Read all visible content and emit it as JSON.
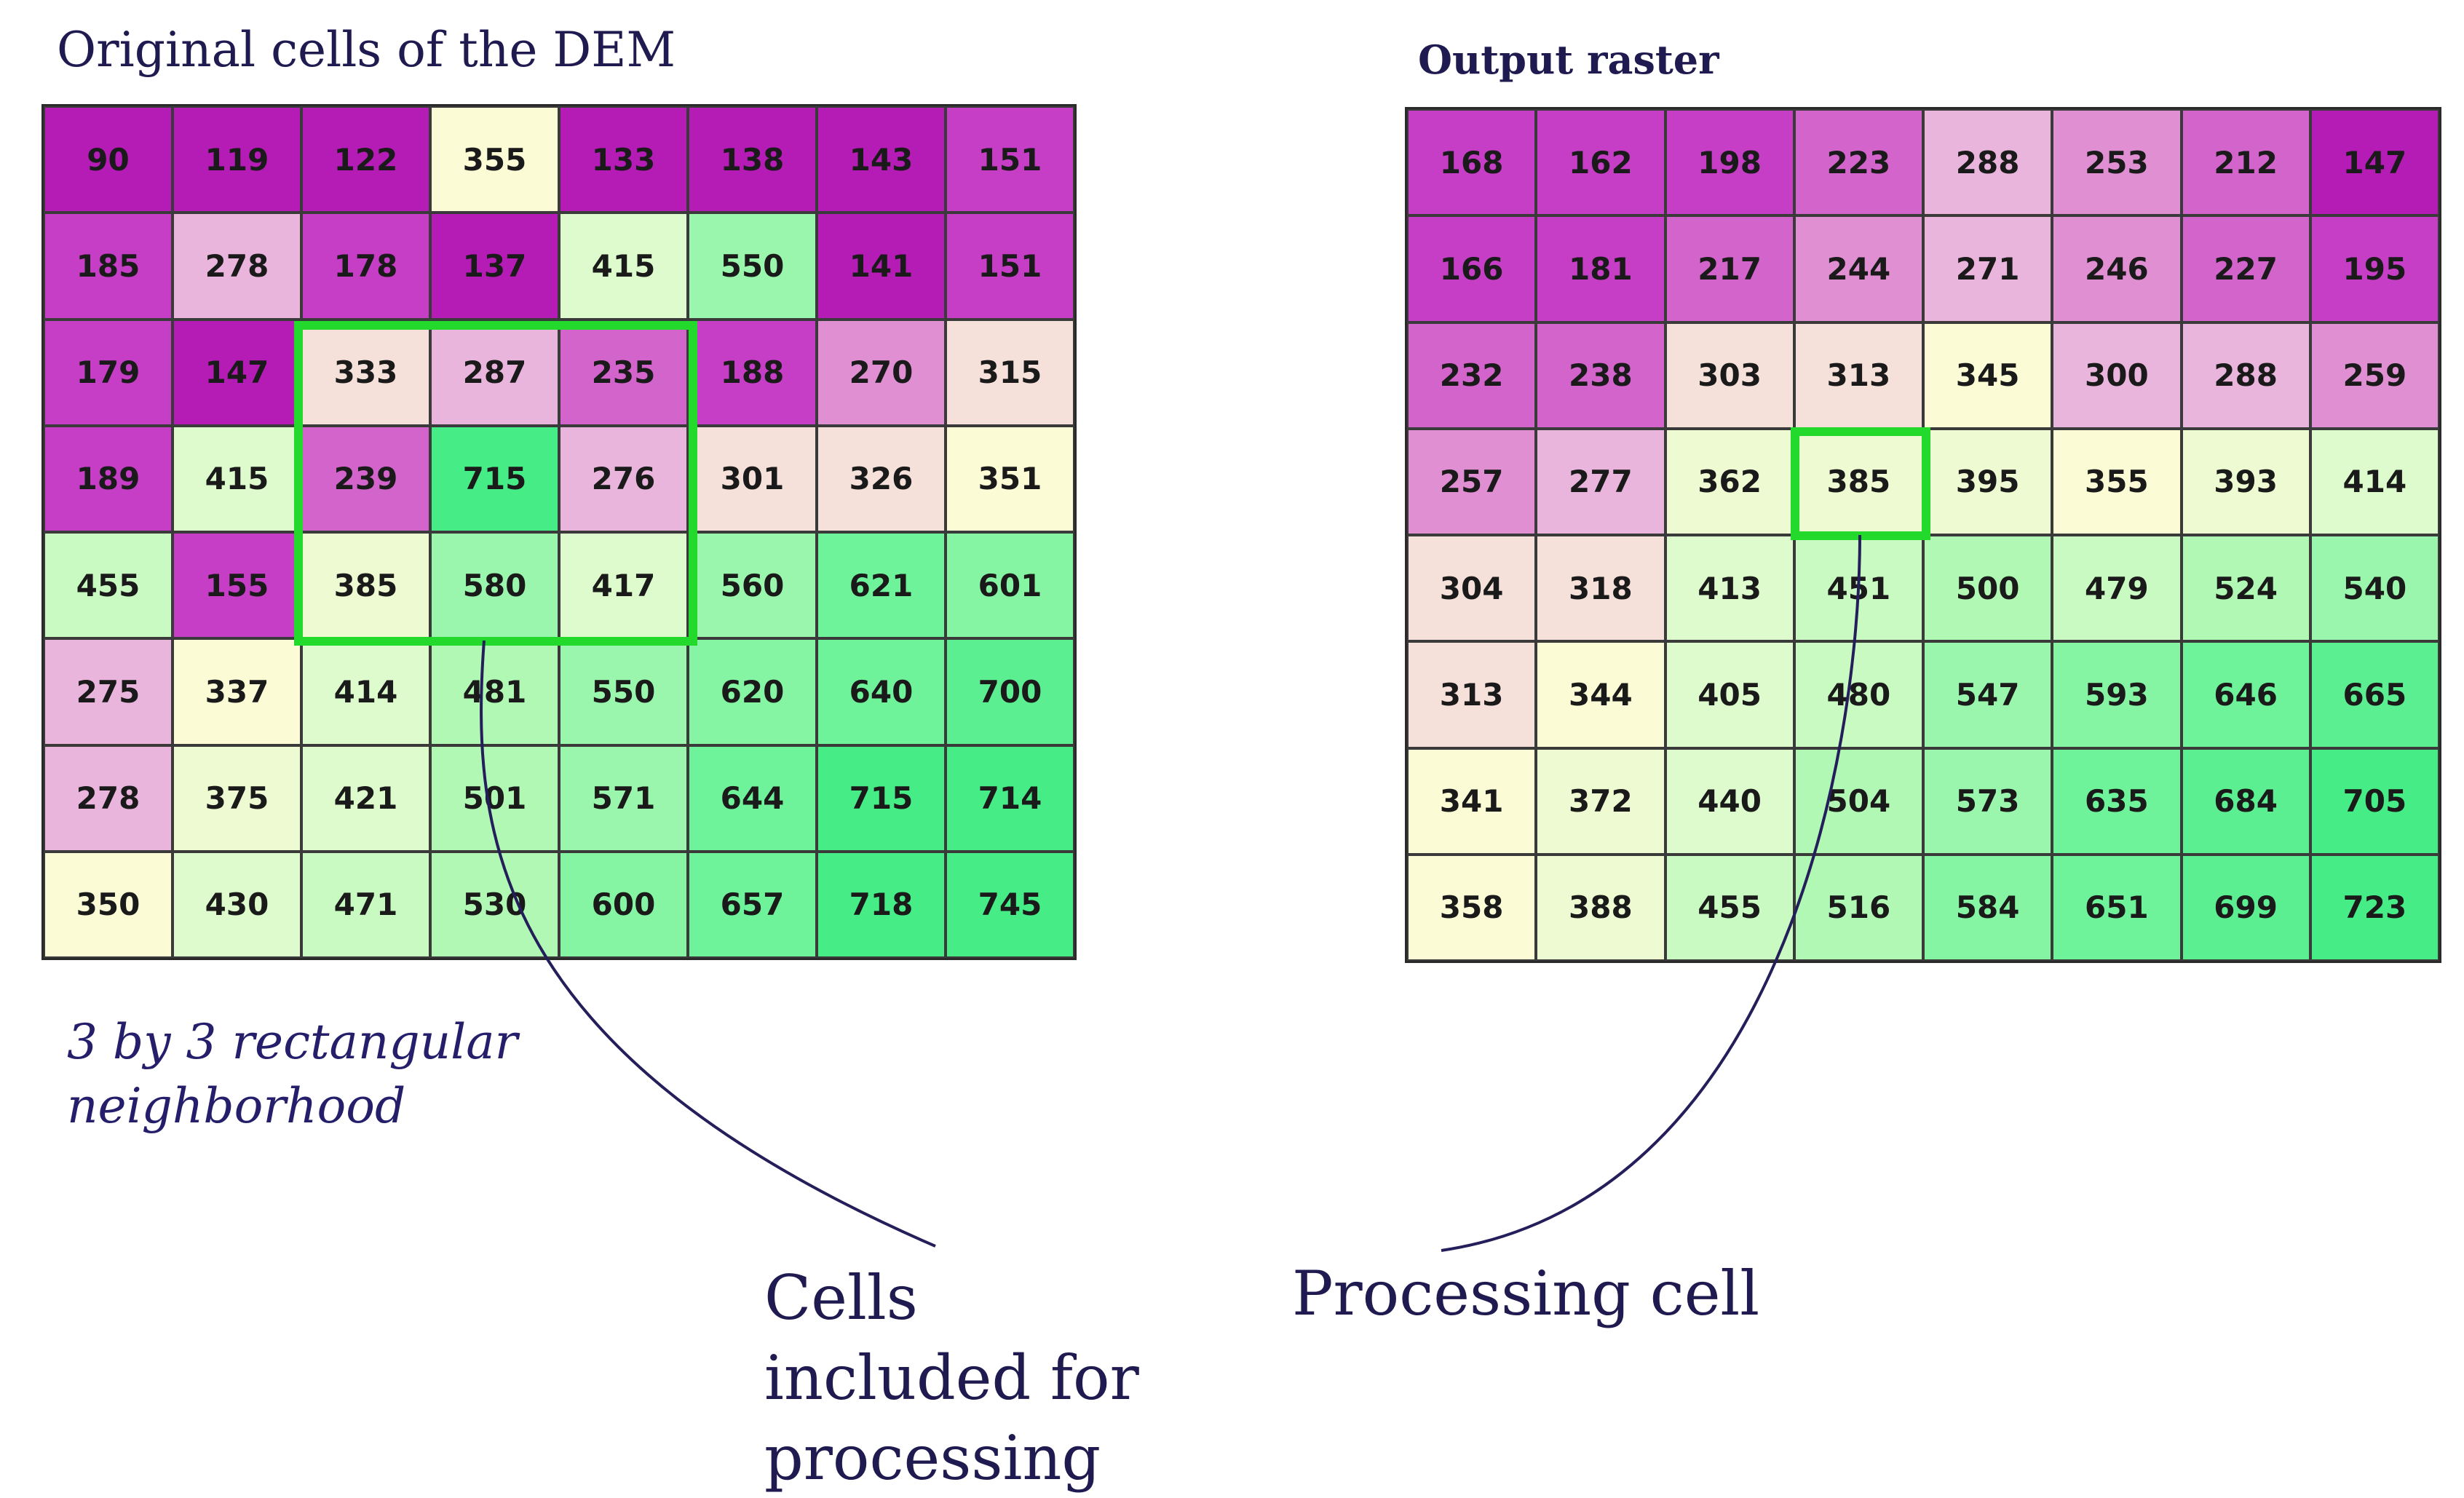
{
  "left_panel": {
    "title": "Original cells of the DEM",
    "neighborhood_label": "3 by 3 rectangular neighborhood",
    "rows": [
      [
        90,
        119,
        122,
        355,
        133,
        138,
        143,
        151
      ],
      [
        185,
        278,
        178,
        137,
        415,
        550,
        141,
        151
      ],
      [
        179,
        147,
        333,
        287,
        235,
        188,
        270,
        315
      ],
      [
        189,
        415,
        239,
        715,
        276,
        301,
        326,
        351
      ],
      [
        455,
        155,
        385,
        580,
        417,
        560,
        621,
        601
      ],
      [
        275,
        337,
        414,
        481,
        550,
        620,
        640,
        700
      ],
      [
        278,
        375,
        421,
        501,
        571,
        644,
        715,
        714
      ],
      [
        350,
        430,
        471,
        530,
        600,
        657,
        718,
        745
      ]
    ]
  },
  "right_panel": {
    "title": "Output raster",
    "rows": [
      [
        168,
        162,
        198,
        223,
        288,
        253,
        212,
        147
      ],
      [
        166,
        181,
        217,
        244,
        271,
        246,
        227,
        195
      ],
      [
        232,
        238,
        303,
        313,
        345,
        300,
        288,
        259
      ],
      [
        257,
        277,
        362,
        385,
        395,
        355,
        393,
        414
      ],
      [
        304,
        318,
        413,
        451,
        500,
        479,
        524,
        540
      ],
      [
        313,
        344,
        405,
        480,
        547,
        593,
        646,
        665
      ],
      [
        341,
        372,
        440,
        504,
        573,
        635,
        684,
        705
      ],
      [
        358,
        388,
        455,
        516,
        584,
        651,
        699,
        723
      ]
    ]
  },
  "captions": {
    "included": "Cells included for processing",
    "processing": "Processing cell"
  },
  "colors": {
    "highlight": "#22d92c",
    "leader_line": "#241e5a"
  },
  "color_scale": [
    {
      "max": 150,
      "color": "#b51bb5"
    },
    {
      "max": 200,
      "color": "#c53ec5"
    },
    {
      "max": 240,
      "color": "#d364cc"
    },
    {
      "max": 270,
      "color": "#df8fd2"
    },
    {
      "max": 300,
      "color": "#e9b5dc"
    },
    {
      "max": 335,
      "color": "#f6e1da"
    },
    {
      "max": 360,
      "color": "#fbfbd6"
    },
    {
      "max": 400,
      "color": "#eefbd2"
    },
    {
      "max": 440,
      "color": "#ddfbcc"
    },
    {
      "max": 480,
      "color": "#c9fac2"
    },
    {
      "max": 530,
      "color": "#b0f8b4"
    },
    {
      "max": 580,
      "color": "#99f6ac"
    },
    {
      "max": 620,
      "color": "#85f4a3"
    },
    {
      "max": 660,
      "color": "#6ef29a"
    },
    {
      "max": 700,
      "color": "#5cef91"
    },
    {
      "max": 9999,
      "color": "#46ec86"
    }
  ]
}
